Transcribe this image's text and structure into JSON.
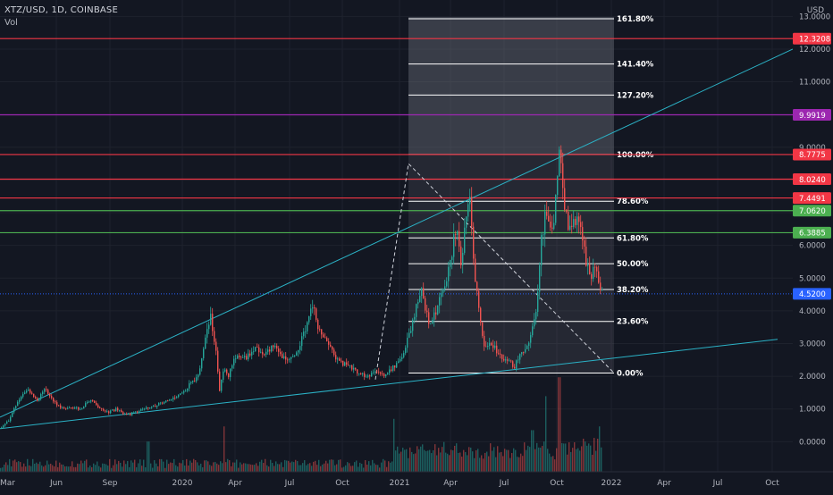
{
  "header": {
    "symbol_line": "XTZ/USD, 1D, COINBASE",
    "volume_label": "Vol",
    "currency": "USD"
  },
  "colors": {
    "background": "#131722",
    "grid": "#1e222d",
    "candle_up": "#26a69a",
    "candle_down": "#ef5350",
    "trendline": "#2bb2c6",
    "red_level": "#f23645",
    "purple_level": "#9c27b0",
    "green_level": "#4caf50",
    "current_price": "#2962ff",
    "fib_line": "#ffffff"
  },
  "chart_data": {
    "type": "candlestick",
    "title": "XTZ/USD, 1D, COINBASE",
    "ylabel": "USD",
    "ylim": [
      -0.4,
      13.2
    ],
    "x_ticks": [
      "Jun",
      "Sep",
      "2020",
      "Apr",
      "Jul",
      "Oct",
      "2021",
      "Apr",
      "Jul",
      "Oct",
      "2022",
      "Apr",
      "Jul",
      "Oct"
    ],
    "y_ticks": [
      "13.0000",
      "12.0000",
      "11.0000",
      "10.0000",
      "9.0000",
      "8.0000",
      "7.0000",
      "6.0000",
      "5.0000",
      "4.0000",
      "3.0000",
      "2.0000",
      "1.0000",
      "0.0000"
    ],
    "price_path": [
      [
        0,
        0.4
      ],
      [
        10,
        0.7
      ],
      [
        20,
        1.3
      ],
      [
        30,
        1.6
      ],
      [
        40,
        1.25
      ],
      [
        50,
        1.6
      ],
      [
        60,
        1.2
      ],
      [
        70,
        1.0
      ],
      [
        80,
        1.05
      ],
      [
        90,
        1.0
      ],
      [
        100,
        1.3
      ],
      [
        110,
        1.0
      ],
      [
        120,
        0.9
      ],
      [
        130,
        1.0
      ],
      [
        140,
        0.8
      ],
      [
        150,
        0.9
      ],
      [
        160,
        1.0
      ],
      [
        170,
        1.05
      ],
      [
        180,
        1.2
      ],
      [
        190,
        1.3
      ],
      [
        200,
        1.4
      ],
      [
        210,
        1.7
      ],
      [
        220,
        2.0
      ],
      [
        225,
        2.5
      ],
      [
        230,
        3.4
      ],
      [
        235,
        3.8
      ],
      [
        240,
        3.0
      ],
      [
        245,
        1.6
      ],
      [
        250,
        2.3
      ],
      [
        255,
        2.0
      ],
      [
        260,
        2.5
      ],
      [
        265,
        2.6
      ],
      [
        275,
        2.6
      ],
      [
        285,
        2.9
      ],
      [
        295,
        2.7
      ],
      [
        305,
        2.9
      ],
      [
        315,
        2.6
      ],
      [
        325,
        2.5
      ],
      [
        335,
        3.0
      ],
      [
        345,
        3.8
      ],
      [
        350,
        4.2
      ],
      [
        355,
        3.5
      ],
      [
        360,
        3.2
      ],
      [
        370,
        2.8
      ],
      [
        380,
        2.4
      ],
      [
        390,
        2.3
      ],
      [
        400,
        2.1
      ],
      [
        410,
        1.95
      ],
      [
        420,
        2.2
      ],
      [
        430,
        2.05
      ],
      [
        440,
        2.3
      ],
      [
        450,
        2.6
      ],
      [
        460,
        3.6
      ],
      [
        470,
        4.7
      ],
      [
        480,
        3.6
      ],
      [
        490,
        4.2
      ],
      [
        500,
        5.0
      ],
      [
        510,
        6.7
      ],
      [
        515,
        5.4
      ],
      [
        520,
        6.8
      ],
      [
        525,
        7.4
      ],
      [
        530,
        5.0
      ],
      [
        535,
        4.1
      ],
      [
        540,
        2.9
      ],
      [
        550,
        3.0
      ],
      [
        560,
        2.6
      ],
      [
        570,
        2.4
      ],
      [
        575,
        2.3
      ],
      [
        580,
        2.6
      ],
      [
        590,
        2.9
      ],
      [
        600,
        4.1
      ],
      [
        605,
        6.2
      ],
      [
        610,
        7.1
      ],
      [
        615,
        6.5
      ],
      [
        620,
        7.0
      ],
      [
        625,
        8.8
      ],
      [
        630,
        7.5
      ],
      [
        635,
        6.4
      ],
      [
        640,
        6.9
      ],
      [
        645,
        6.7
      ],
      [
        650,
        6.4
      ],
      [
        655,
        5.5
      ],
      [
        660,
        4.9
      ],
      [
        665,
        5.5
      ],
      [
        670,
        4.5
      ],
      [
        673,
        4.52
      ]
    ],
    "volume_spikes": [
      [
        165,
        0.4
      ],
      [
        250,
        0.6
      ],
      [
        440,
        0.7
      ],
      [
        610,
        1.0
      ],
      [
        625,
        1.25
      ],
      [
        595,
        0.55
      ],
      [
        670,
        0.6
      ]
    ],
    "horizontal_levels": [
      {
        "value": 12.3208,
        "label": "12.3208",
        "color": "red"
      },
      {
        "value": 9.9919,
        "label": "9.9919",
        "color": "purple"
      },
      {
        "value": 8.7775,
        "label": "8.7775",
        "color": "red"
      },
      {
        "value": 8.024,
        "label": "8.0240",
        "color": "red"
      },
      {
        "value": 7.4491,
        "label": "7.4491",
        "color": "red"
      },
      {
        "value": 7.062,
        "label": "7.0620",
        "color": "green"
      },
      {
        "value": 6.3885,
        "label": "6.3885",
        "color": "green"
      }
    ],
    "current_price": {
      "value": 4.52,
      "label": "4.5200"
    },
    "fibonacci": {
      "x_start": 457,
      "x_end": 687,
      "price_0": 2.1,
      "price_100": 8.78,
      "levels": [
        {
          "ratio": 1.618,
          "label": "161.80%"
        },
        {
          "ratio": 1.414,
          "label": "141.40%"
        },
        {
          "ratio": 1.272,
          "label": "127.20%"
        },
        {
          "ratio": 1.0,
          "label": "100.00%"
        },
        {
          "ratio": 0.786,
          "label": "78.60%"
        },
        {
          "ratio": 0.618,
          "label": "61.80%"
        },
        {
          "ratio": 0.5,
          "label": "50.00%"
        },
        {
          "ratio": 0.382,
          "label": "38.20%"
        },
        {
          "ratio": 0.236,
          "label": "23.60%"
        },
        {
          "ratio": 0.0,
          "label": "0.00%"
        }
      ]
    },
    "trendlines": [
      {
        "from": [
          0,
          0.75
        ],
        "to": [
          887,
          12.0
        ]
      },
      {
        "from": [
          0,
          0.4
        ],
        "to": [
          870,
          3.13
        ]
      }
    ],
    "dashed_path": [
      [
        420,
        1.9
      ],
      [
        457,
        8.5
      ],
      [
        687,
        2.1
      ]
    ]
  }
}
